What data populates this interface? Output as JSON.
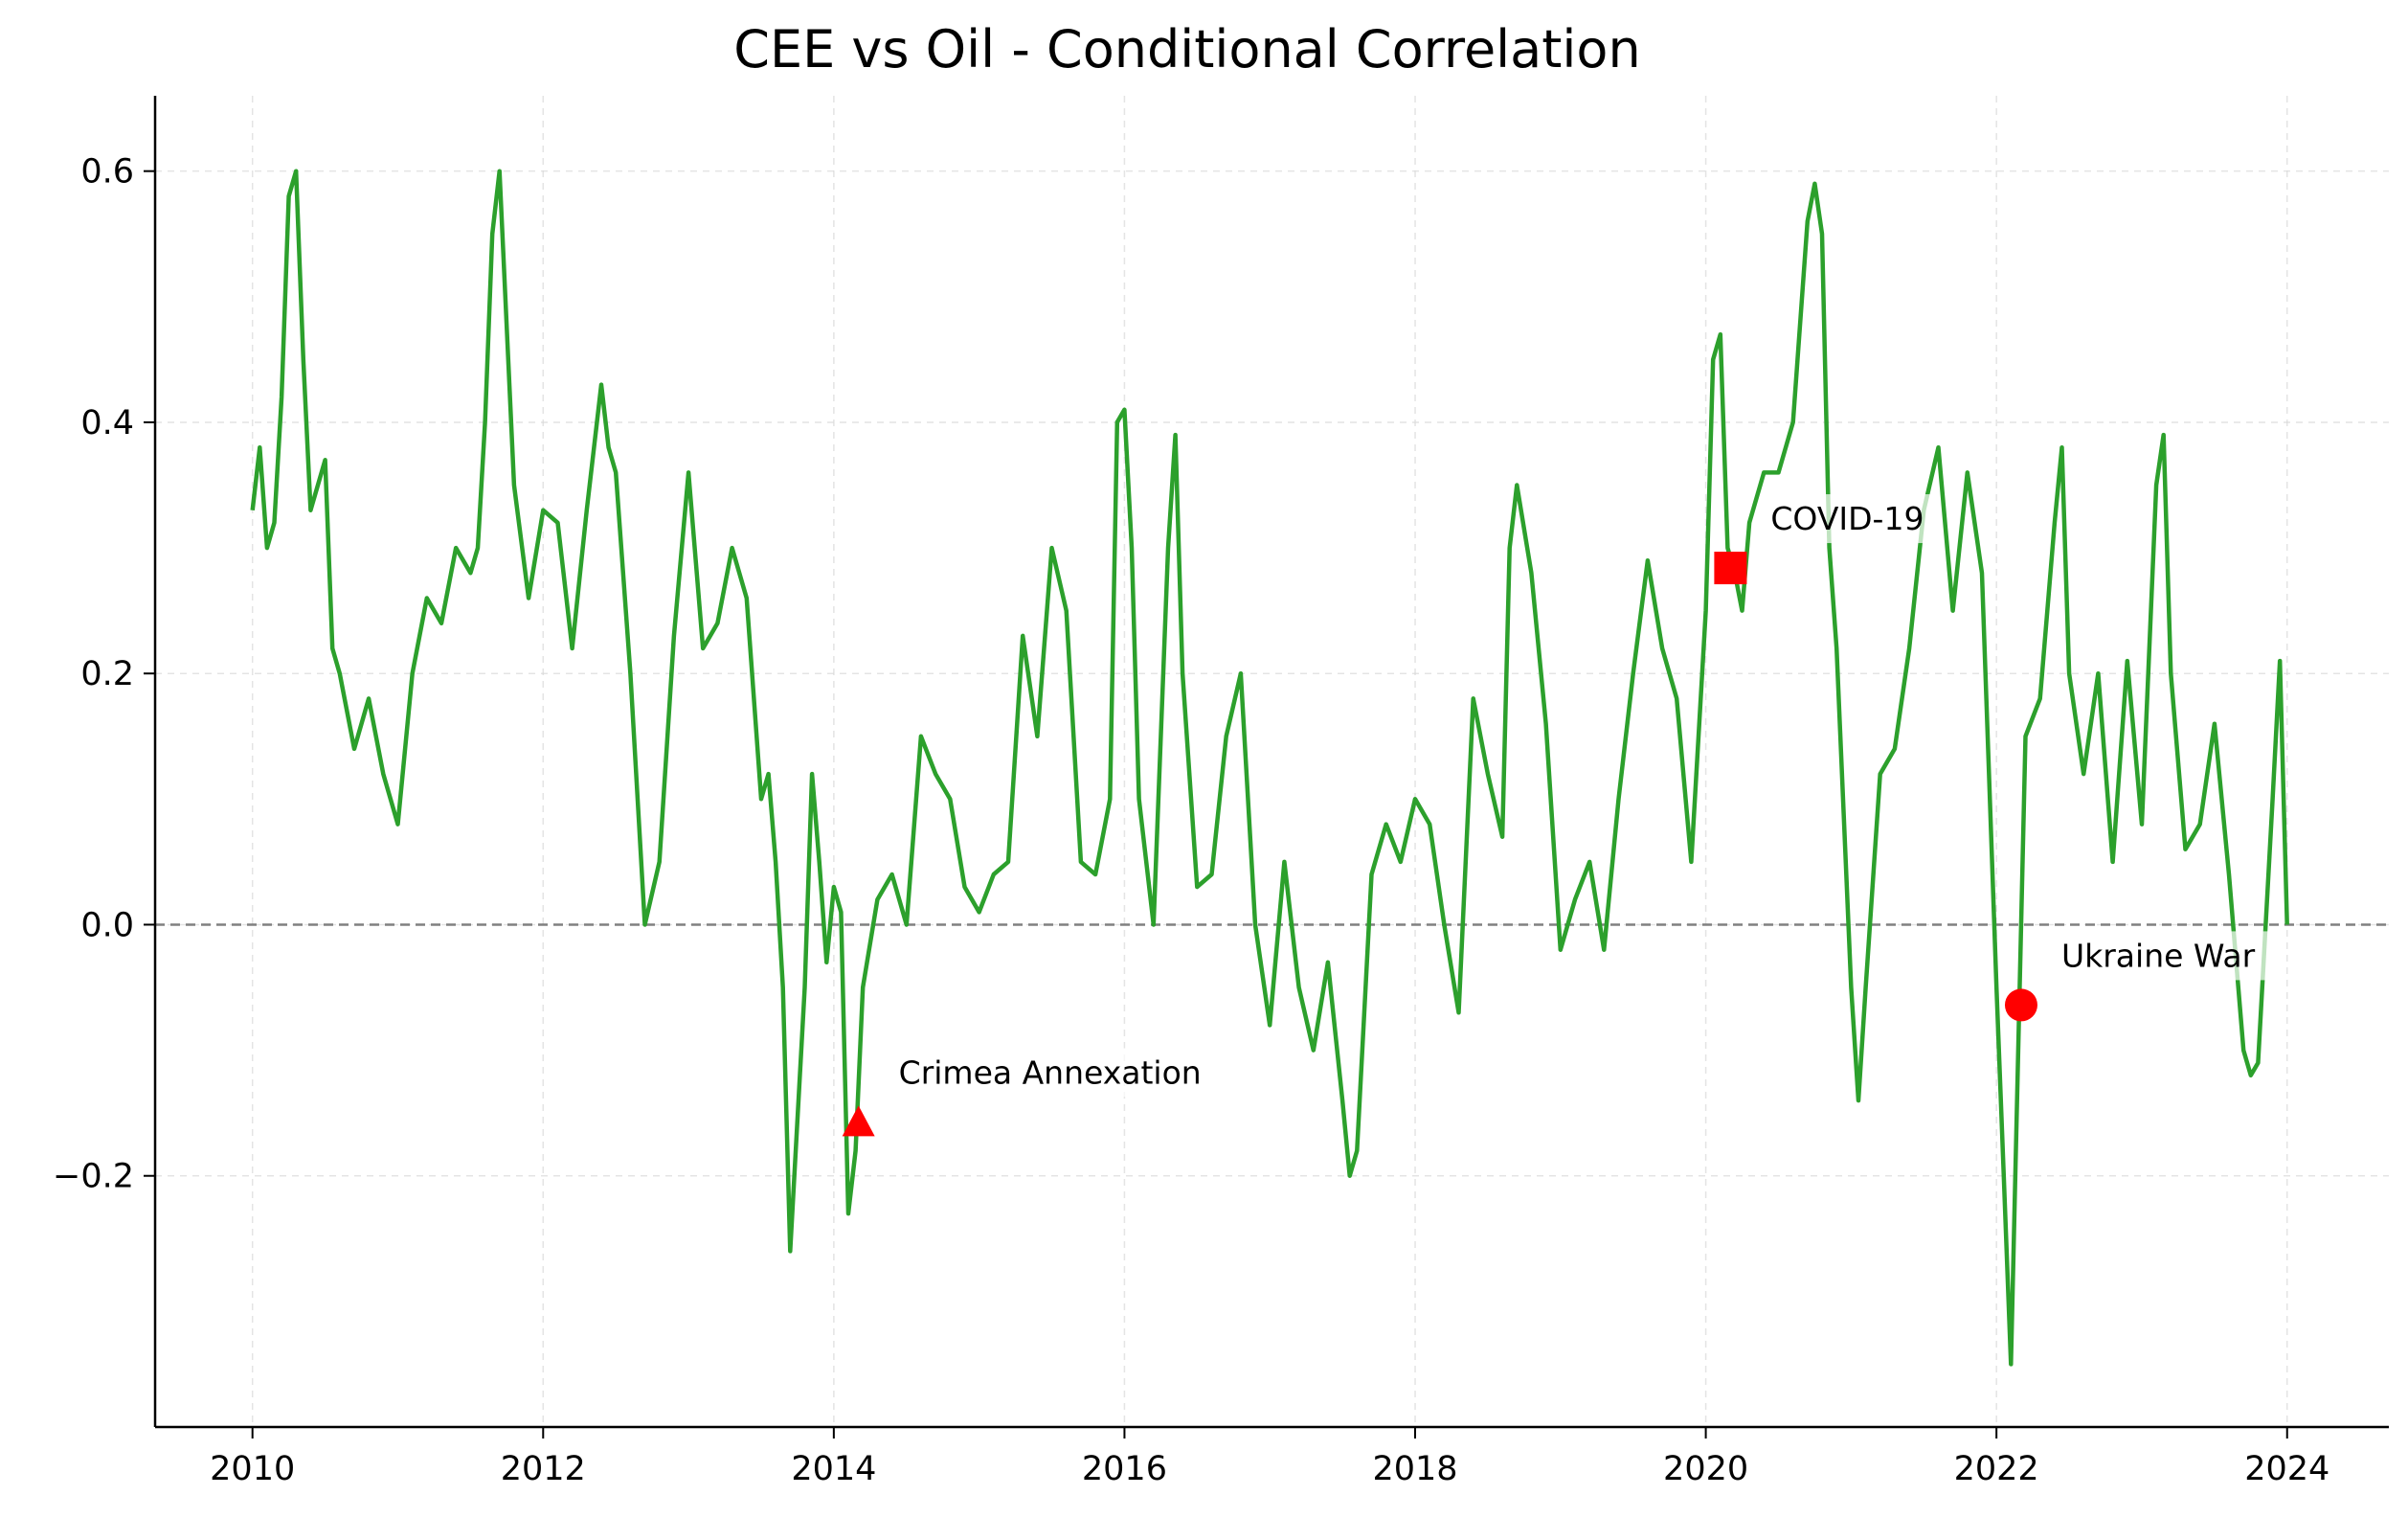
{
  "chart_data": {
    "type": "line",
    "title": "CEE vs Oil - Conditional Correlation",
    "xlabel": "",
    "ylabel": "",
    "xlim": [
      2009.33,
      2024.7
    ],
    "ylim": [
      -0.4,
      0.66
    ],
    "x_ticks": [
      2010,
      2012,
      2014,
      2016,
      2018,
      2020,
      2022,
      2024
    ],
    "x_tick_labels": [
      "2010",
      "2012",
      "2014",
      "2016",
      "2018",
      "2020",
      "2022",
      "2024"
    ],
    "y_ticks": [
      -0.2,
      0.0,
      0.2,
      0.4,
      0.6
    ],
    "y_tick_labels": [
      "−0.2",
      "0.0",
      "0.2",
      "0.4",
      "0.6"
    ],
    "grid": true,
    "reference_line": {
      "y": 0.0,
      "style": "dashed",
      "color": "#808080"
    },
    "series": [
      {
        "color": "#2ca02c",
        "x": [
          2010.0,
          2010.05,
          2010.1,
          2010.15,
          2010.2,
          2010.25,
          2010.3,
          2010.35,
          2010.4,
          2010.45,
          2010.5,
          2010.55,
          2010.6,
          2010.7,
          2010.8,
          2010.9,
          2011.0,
          2011.1,
          2011.2,
          2011.3,
          2011.4,
          2011.5,
          2011.55,
          2011.6,
          2011.65,
          2011.7,
          2011.8,
          2011.9,
          2012.0,
          2012.1,
          2012.2,
          2012.3,
          2012.35,
          2012.4,
          2012.45,
          2012.5,
          2012.6,
          2012.7,
          2012.8,
          2012.9,
          2013.0,
          2013.1,
          2013.2,
          2013.3,
          2013.4,
          2013.5,
          2013.55,
          2013.6,
          2013.65,
          2013.7,
          2013.8,
          2013.85,
          2013.9,
          2013.95,
          2014.0,
          2014.05,
          2014.1,
          2014.15,
          2014.2,
          2014.3,
          2014.4,
          2014.5,
          2014.6,
          2014.7,
          2014.8,
          2014.9,
          2015.0,
          2015.1,
          2015.2,
          2015.3,
          2015.4,
          2015.5,
          2015.6,
          2015.7,
          2015.8,
          2015.9,
          2015.95,
          2016.0,
          2016.05,
          2016.1,
          2016.2,
          2016.3,
          2016.35,
          2016.4,
          2016.5,
          2016.6,
          2016.7,
          2016.8,
          2016.9,
          2017.0,
          2017.1,
          2017.2,
          2017.3,
          2017.4,
          2017.5,
          2017.55,
          2017.6,
          2017.7,
          2017.8,
          2017.9,
          2018.0,
          2018.1,
          2018.2,
          2018.3,
          2018.4,
          2018.5,
          2018.6,
          2018.65,
          2018.7,
          2018.8,
          2018.9,
          2019.0,
          2019.1,
          2019.2,
          2019.3,
          2019.4,
          2019.5,
          2019.6,
          2019.7,
          2019.8,
          2019.9,
          2020.0,
          2020.05,
          2020.1,
          2020.15,
          2020.2,
          2020.25,
          2020.3,
          2020.4,
          2020.5,
          2020.6,
          2020.7,
          2020.75,
          2020.8,
          2020.85,
          2020.9,
          2021.0,
          2021.05,
          2021.1,
          2021.2,
          2021.3,
          2021.4,
          2021.5,
          2021.6,
          2021.7,
          2021.8,
          2021.9,
          2022.0,
          2022.05,
          2022.1,
          2022.15,
          2022.2,
          2022.3,
          2022.4,
          2022.45,
          2022.5,
          2022.6,
          2022.7,
          2022.8,
          2022.9,
          2023.0,
          2023.1,
          2023.15,
          2023.2,
          2023.3,
          2023.4,
          2023.5,
          2023.6,
          2023.7,
          2023.75,
          2023.8,
          2023.9,
          2023.95,
          2024.0
        ],
        "y": [
          0.33,
          0.38,
          0.3,
          0.32,
          0.42,
          0.58,
          0.6,
          0.45,
          0.33,
          0.35,
          0.37,
          0.22,
          0.2,
          0.14,
          0.18,
          0.12,
          0.08,
          0.2,
          0.26,
          0.24,
          0.3,
          0.28,
          0.3,
          0.4,
          0.55,
          0.6,
          0.35,
          0.26,
          0.33,
          0.32,
          0.22,
          0.33,
          0.38,
          0.43,
          0.38,
          0.36,
          0.2,
          0.0,
          0.05,
          0.23,
          0.36,
          0.22,
          0.24,
          0.3,
          0.26,
          0.1,
          0.12,
          0.05,
          -0.05,
          -0.26,
          -0.05,
          0.12,
          0.05,
          -0.03,
          0.03,
          0.01,
          -0.23,
          -0.18,
          -0.05,
          0.02,
          0.04,
          0.0,
          0.15,
          0.12,
          0.1,
          0.03,
          0.01,
          0.04,
          0.05,
          0.23,
          0.15,
          0.3,
          0.25,
          0.05,
          0.04,
          0.1,
          0.4,
          0.41,
          0.3,
          0.1,
          0.0,
          0.3,
          0.39,
          0.2,
          0.03,
          0.04,
          0.15,
          0.2,
          0.0,
          -0.08,
          0.05,
          -0.05,
          -0.1,
          -0.03,
          -0.14,
          -0.2,
          -0.18,
          0.04,
          0.08,
          0.05,
          0.1,
          0.08,
          0.0,
          -0.07,
          0.18,
          0.12,
          0.07,
          0.3,
          0.35,
          0.28,
          0.16,
          -0.02,
          0.02,
          0.05,
          -0.02,
          0.1,
          0.2,
          0.29,
          0.22,
          0.18,
          0.05,
          0.25,
          0.45,
          0.47,
          0.3,
          0.28,
          0.25,
          0.32,
          0.36,
          0.36,
          0.4,
          0.56,
          0.59,
          0.55,
          0.3,
          0.22,
          -0.05,
          -0.14,
          -0.05,
          0.12,
          0.14,
          0.22,
          0.33,
          0.38,
          0.25,
          0.36,
          0.28,
          -0.05,
          -0.2,
          -0.35,
          -0.1,
          0.15,
          0.18,
          0.32,
          0.38,
          0.2,
          0.12,
          0.2,
          0.05,
          0.21,
          0.08,
          0.35,
          0.39,
          0.2,
          0.06,
          0.08,
          0.16,
          0.04,
          -0.1,
          -0.12,
          -0.11,
          0.1,
          0.21,
          0.0
        ]
      }
    ],
    "annotations": [
      {
        "label": "Crimea Annexation",
        "x": 2014.17,
        "y": -0.157,
        "marker": "triangle",
        "color": "#ff0000"
      },
      {
        "label": "COVID-19",
        "x": 2020.17,
        "y": 0.284,
        "marker": "square",
        "color": "#ff0000"
      },
      {
        "label": "Ukraine War",
        "x": 2022.17,
        "y": -0.064,
        "marker": "circle",
        "color": "#ff0000"
      }
    ]
  }
}
